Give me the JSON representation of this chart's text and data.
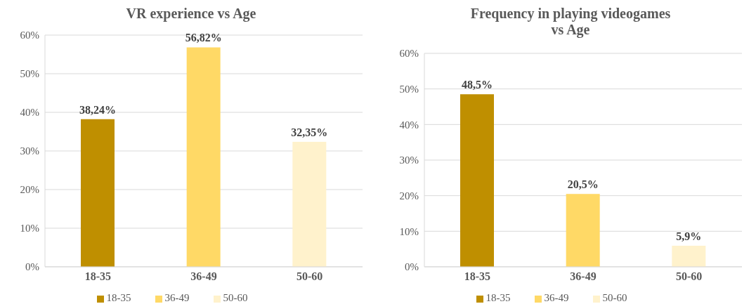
{
  "chart_data": [
    {
      "type": "bar",
      "title": "VR experience vs Age",
      "categories": [
        "18-35",
        "36-49",
        "50-60"
      ],
      "stacked": true,
      "series": [
        {
          "name": "18-35",
          "color": "#bf8f00",
          "values": [
            38.24,
            null,
            null
          ],
          "value_labels": [
            "38,24%",
            null,
            null
          ]
        },
        {
          "name": "36-49",
          "color": "#ffd966",
          "values": [
            null,
            56.82,
            null
          ],
          "value_labels": [
            null,
            "56,82%",
            null
          ]
        },
        {
          "name": "50-60",
          "color": "#fff2cc",
          "values": [
            null,
            null,
            32.35
          ],
          "value_labels": [
            null,
            null,
            "32,35%"
          ]
        }
      ],
      "ylim": [
        0,
        60
      ],
      "yticks": [
        {
          "value": 0,
          "label": "0%"
        },
        {
          "value": 10,
          "label": "10%"
        },
        {
          "value": 20,
          "label": "20%"
        },
        {
          "value": 30,
          "label": "30%"
        },
        {
          "value": 40,
          "label": "40%"
        },
        {
          "value": 50,
          "label": "50%"
        },
        {
          "value": 60,
          "label": "60%"
        }
      ],
      "grid": "y",
      "legend": "bottom"
    },
    {
      "type": "bar",
      "title": "Frequency in playing videogames vs Age",
      "categories": [
        "18-35",
        "36-49",
        "50-60"
      ],
      "stacked": true,
      "series": [
        {
          "name": "18-35",
          "color": "#bf8f00",
          "values": [
            48.5,
            null,
            null
          ],
          "value_labels": [
            "48,5%",
            null,
            null
          ]
        },
        {
          "name": "36-49",
          "color": "#ffd966",
          "values": [
            null,
            20.5,
            null
          ],
          "value_labels": [
            null,
            "20,5%",
            null
          ]
        },
        {
          "name": "50-60",
          "color": "#fff2cc",
          "values": [
            null,
            null,
            5.9
          ],
          "value_labels": [
            null,
            null,
            "5,9%"
          ]
        }
      ],
      "ylim": [
        0,
        60
      ],
      "yticks": [
        {
          "value": 0,
          "label": "0%"
        },
        {
          "value": 10,
          "label": "10%"
        },
        {
          "value": 20,
          "label": "20%"
        },
        {
          "value": 30,
          "label": "30%"
        },
        {
          "value": 40,
          "label": "40%"
        },
        {
          "value": 50,
          "label": "50%"
        },
        {
          "value": 60,
          "label": "60%"
        }
      ],
      "grid": "y",
      "legend": "bottom"
    }
  ]
}
